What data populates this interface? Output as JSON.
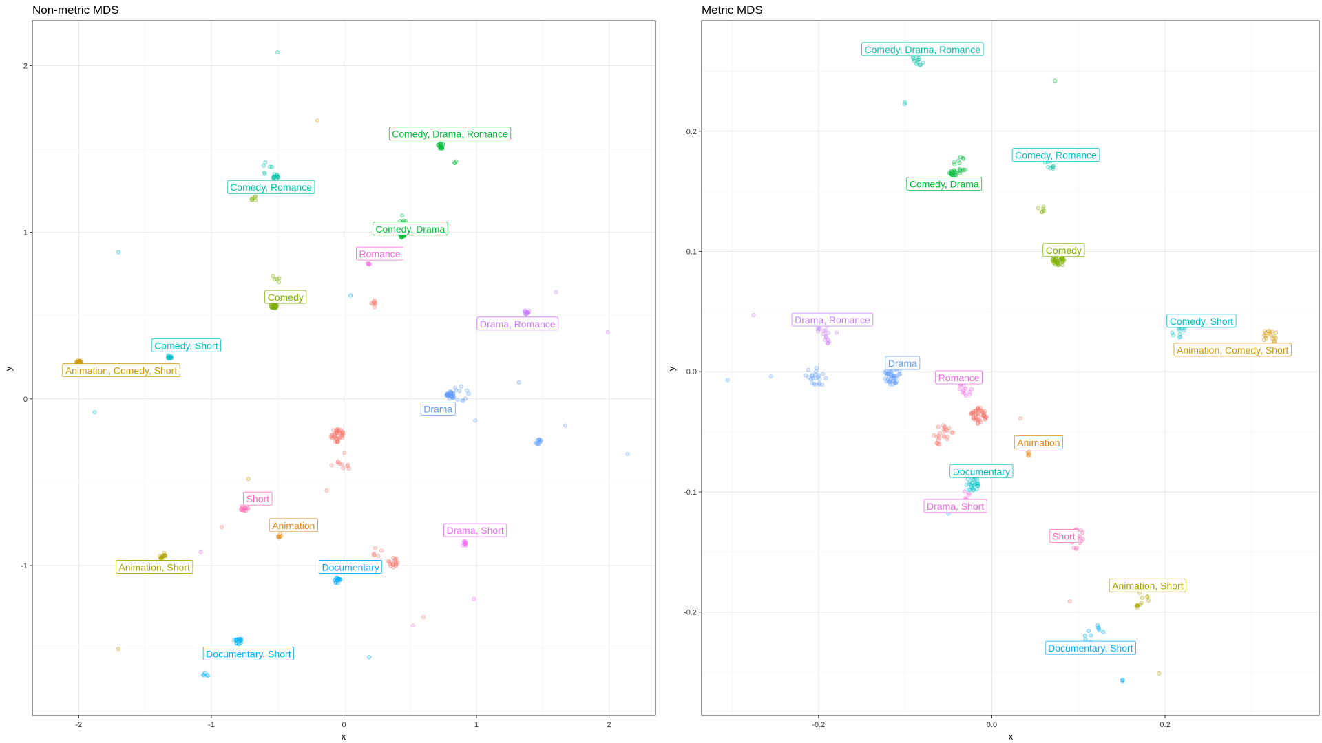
{
  "chart_data": [
    {
      "type": "scatter",
      "title": "Non-metric MDS",
      "xlabel": "x",
      "ylabel": "y",
      "xlim": [
        -2.35,
        2.35
      ],
      "ylim": [
        -1.9,
        2.27
      ],
      "xticks": [
        -2,
        -1,
        0,
        1,
        2
      ],
      "yticks": [
        -1,
        0,
        1,
        2
      ],
      "grid": true,
      "legend": "none",
      "labels": [
        {
          "text": "Comedy, Drama, Romance",
          "x": 0.8,
          "y": 1.59,
          "color": "#00BA38"
        },
        {
          "text": "Comedy, Romance",
          "x": -0.55,
          "y": 1.27,
          "color": "#00BFA4"
        },
        {
          "text": "Comedy, Drama",
          "x": 0.5,
          "y": 1.02,
          "color": "#00BA38"
        },
        {
          "text": "Romance",
          "x": 0.27,
          "y": 0.87,
          "color": "#F564E3"
        },
        {
          "text": "Comedy",
          "x": -0.44,
          "y": 0.61,
          "color": "#7CAE00"
        },
        {
          "text": "Drama, Romance",
          "x": 1.31,
          "y": 0.45,
          "color": "#C77CFF"
        },
        {
          "text": "Comedy, Short",
          "x": -1.19,
          "y": 0.32,
          "color": "#00BFC4"
        },
        {
          "text": "Animation, Comedy, Short",
          "x": -1.68,
          "y": 0.17,
          "color": "#CD9600"
        },
        {
          "text": "Drama",
          "x": 0.71,
          "y": -0.06,
          "color": "#619CFF"
        },
        {
          "text": "Short",
          "x": -0.65,
          "y": -0.6,
          "color": "#FF64B0"
        },
        {
          "text": "Animation",
          "x": -0.38,
          "y": -0.76,
          "color": "#E68613"
        },
        {
          "text": "Drama, Short",
          "x": 0.99,
          "y": -0.79,
          "color": "#E76BF3"
        },
        {
          "text": "Animation, Short",
          "x": -1.43,
          "y": -1.01,
          "color": "#ABA300"
        },
        {
          "text": "Documentary",
          "x": 0.05,
          "y": -1.01,
          "color": "#00A9FF"
        },
        {
          "text": "Documentary, Short",
          "x": -0.72,
          "y": -1.53,
          "color": "#00B0F6"
        }
      ],
      "clusters": [
        {
          "x": 0.73,
          "y": 1.52,
          "n": 18,
          "spread": 0.025,
          "color": "#00BA38"
        },
        {
          "x": 0.84,
          "y": 1.42,
          "n": 3,
          "spread": 0.01,
          "color": "#00BA38"
        },
        {
          "x": -0.52,
          "y": 1.33,
          "n": 14,
          "spread": 0.025,
          "color": "#00BFA4"
        },
        {
          "x": -0.58,
          "y": 1.38,
          "n": 6,
          "spread": 0.05,
          "color": "#00BFA4"
        },
        {
          "x": -0.68,
          "y": 1.21,
          "n": 6,
          "spread": 0.03,
          "color": "#7CAE00"
        },
        {
          "x": 0.44,
          "y": 0.98,
          "n": 22,
          "spread": 0.02,
          "color": "#00BA38"
        },
        {
          "x": 0.44,
          "y": 1.08,
          "n": 6,
          "spread": 0.05,
          "color": "#00BA38"
        },
        {
          "x": 0.19,
          "y": 0.82,
          "n": 5,
          "spread": 0.02,
          "color": "#F564E3"
        },
        {
          "x": -0.53,
          "y": 0.56,
          "n": 26,
          "spread": 0.025,
          "color": "#7CAE00"
        },
        {
          "x": -0.52,
          "y": 0.71,
          "n": 5,
          "spread": 0.04,
          "color": "#7CAE00"
        },
        {
          "x": 0.22,
          "y": 0.57,
          "n": 8,
          "spread": 0.03,
          "color": "#F8766D"
        },
        {
          "x": 1.38,
          "y": 0.52,
          "n": 16,
          "spread": 0.02,
          "color": "#C77CFF"
        },
        {
          "x": -1.32,
          "y": 0.25,
          "n": 14,
          "spread": 0.02,
          "color": "#00BFC4"
        },
        {
          "x": -1.4,
          "y": 0.31,
          "n": 4,
          "spread": 0.04,
          "color": "#00BFC4"
        },
        {
          "x": -2.0,
          "y": 0.22,
          "n": 18,
          "spread": 0.02,
          "color": "#CD9600"
        },
        {
          "x": 0.8,
          "y": 0.02,
          "n": 30,
          "spread": 0.03,
          "color": "#619CFF"
        },
        {
          "x": 0.88,
          "y": 0.03,
          "n": 10,
          "spread": 0.06,
          "color": "#619CFF"
        },
        {
          "x": 1.47,
          "y": -0.26,
          "n": 12,
          "spread": 0.025,
          "color": "#619CFF"
        },
        {
          "x": -0.05,
          "y": -0.22,
          "n": 40,
          "spread": 0.05,
          "color": "#F8766D"
        },
        {
          "x": -0.02,
          "y": -0.38,
          "n": 10,
          "spread": 0.08,
          "color": "#F8766D"
        },
        {
          "x": 0.37,
          "y": -0.98,
          "n": 18,
          "spread": 0.04,
          "color": "#F8766D"
        },
        {
          "x": 0.26,
          "y": -0.92,
          "n": 6,
          "spread": 0.04,
          "color": "#F8766D"
        },
        {
          "x": -0.75,
          "y": -0.66,
          "n": 14,
          "spread": 0.03,
          "color": "#FF64B0"
        },
        {
          "x": -0.48,
          "y": -0.82,
          "n": 7,
          "spread": 0.02,
          "color": "#E68613"
        },
        {
          "x": 0.91,
          "y": -0.87,
          "n": 10,
          "spread": 0.02,
          "color": "#E76BF3"
        },
        {
          "x": -1.37,
          "y": -0.94,
          "n": 14,
          "spread": 0.025,
          "color": "#ABA300"
        },
        {
          "x": -0.05,
          "y": -1.09,
          "n": 18,
          "spread": 0.025,
          "color": "#00A9FF"
        },
        {
          "x": -0.8,
          "y": -1.45,
          "n": 18,
          "spread": 0.03,
          "color": "#00B0F6"
        },
        {
          "x": -1.04,
          "y": -1.66,
          "n": 5,
          "spread": 0.03,
          "color": "#00B0F6"
        }
      ],
      "points": [
        {
          "x": -0.5,
          "y": 2.08,
          "color": "#00BFA4"
        },
        {
          "x": -0.2,
          "y": 1.67,
          "color": "#CD9600"
        },
        {
          "x": -1.7,
          "y": 0.88,
          "color": "#00BFC4"
        },
        {
          "x": 0.05,
          "y": 0.62,
          "color": "#00A9FF"
        },
        {
          "x": 1.6,
          "y": 0.64,
          "color": "#C77CFF"
        },
        {
          "x": 1.99,
          "y": 0.4,
          "color": "#C77CFF"
        },
        {
          "x": 1.32,
          "y": 0.1,
          "color": "#619CFF"
        },
        {
          "x": 2.14,
          "y": -0.33,
          "color": "#619CFF"
        },
        {
          "x": 0.99,
          "y": -0.13,
          "color": "#619CFF"
        },
        {
          "x": -1.88,
          "y": -0.08,
          "color": "#00BFC4"
        },
        {
          "x": 1.67,
          "y": -0.16,
          "color": "#619CFF"
        },
        {
          "x": -0.72,
          "y": -0.48,
          "color": "#CD9600"
        },
        {
          "x": -0.92,
          "y": -0.77,
          "color": "#F8766D"
        },
        {
          "x": 0.98,
          "y": -1.2,
          "color": "#F564E3"
        },
        {
          "x": -1.7,
          "y": -1.5,
          "color": "#ABA300"
        },
        {
          "x": 0.19,
          "y": -1.55,
          "color": "#00A9FF"
        },
        {
          "x": 0.6,
          "y": -1.31,
          "color": "#F8766D"
        },
        {
          "x": 0.52,
          "y": -1.36,
          "color": "#F564E3"
        },
        {
          "x": -1.08,
          "y": -0.92,
          "color": "#F564E3"
        },
        {
          "x": -0.13,
          "y": -0.55,
          "color": "#F8766D"
        }
      ]
    },
    {
      "type": "scatter",
      "title": "Metric MDS",
      "xlabel": "x",
      "ylabel": "y",
      "xlim": [
        -0.335,
        0.378
      ],
      "ylim": [
        -0.286,
        0.292
      ],
      "xticks": [
        -0.2,
        0.0,
        0.2
      ],
      "xtick_labels": [
        "-0.2",
        "0.0",
        "0.2"
      ],
      "yticks": [
        -0.2,
        -0.1,
        0.0,
        0.1,
        0.2
      ],
      "ytick_labels": [
        "-0.2",
        "-0.1",
        "0.0",
        "0.1",
        "0.2"
      ],
      "grid": true,
      "legend": "none",
      "labels": [
        {
          "text": "Comedy, Drama, Romance",
          "x": -0.08,
          "y": 0.268,
          "color": "#00BFA4"
        },
        {
          "text": "Comedy, Romance",
          "x": 0.074,
          "y": 0.18,
          "color": "#00BFC4"
        },
        {
          "text": "Comedy, Drama",
          "x": -0.055,
          "y": 0.156,
          "color": "#00BA38"
        },
        {
          "text": "Comedy",
          "x": 0.083,
          "y": 0.101,
          "color": "#7CAE00"
        },
        {
          "text": "Drama, Romance",
          "x": -0.184,
          "y": 0.043,
          "color": "#C77CFF"
        },
        {
          "text": "Comedy, Short",
          "x": 0.242,
          "y": 0.042,
          "color": "#00BFC4"
        },
        {
          "text": "Animation, Comedy, Short",
          "x": 0.278,
          "y": 0.018,
          "color": "#CD9600"
        },
        {
          "text": "Drama",
          "x": -0.103,
          "y": 0.007,
          "color": "#619CFF"
        },
        {
          "text": "Romance",
          "x": -0.038,
          "y": -0.005,
          "color": "#F564E3"
        },
        {
          "text": "Animation",
          "x": 0.054,
          "y": -0.059,
          "color": "#E68613"
        },
        {
          "text": "Documentary",
          "x": -0.012,
          "y": -0.083,
          "color": "#00BFC4"
        },
        {
          "text": "Drama, Short",
          "x": -0.042,
          "y": -0.112,
          "color": "#F564E3"
        },
        {
          "text": "Short",
          "x": 0.083,
          "y": -0.137,
          "color": "#FF64B0"
        },
        {
          "text": "Animation, Short",
          "x": 0.18,
          "y": -0.178,
          "color": "#ABA300"
        },
        {
          "text": "Documentary, Short",
          "x": 0.114,
          "y": -0.23,
          "color": "#00A9FF"
        }
      ],
      "clusters": [
        {
          "x": -0.085,
          "y": 0.26,
          "n": 14,
          "spread": 0.007,
          "color": "#00BFA4"
        },
        {
          "x": -0.098,
          "y": 0.222,
          "n": 2,
          "spread": 0.004,
          "color": "#00BFA4"
        },
        {
          "x": -0.045,
          "y": 0.165,
          "n": 18,
          "spread": 0.004,
          "color": "#00BA38"
        },
        {
          "x": -0.035,
          "y": 0.172,
          "n": 14,
          "spread": 0.009,
          "color": "#00BA38"
        },
        {
          "x": 0.067,
          "y": 0.172,
          "n": 10,
          "spread": 0.007,
          "color": "#00BFA4"
        },
        {
          "x": 0.057,
          "y": 0.135,
          "n": 6,
          "spread": 0.004,
          "color": "#7CAE00"
        },
        {
          "x": 0.077,
          "y": 0.093,
          "n": 45,
          "spread": 0.007,
          "color": "#7CAE00"
        },
        {
          "x": -0.19,
          "y": 0.033,
          "n": 18,
          "spread": 0.012,
          "color": "#C77CFF"
        },
        {
          "x": -0.203,
          "y": -0.004,
          "n": 22,
          "spread": 0.012,
          "color": "#619CFF"
        },
        {
          "x": -0.115,
          "y": -0.003,
          "n": 45,
          "spread": 0.01,
          "color": "#619CFF"
        },
        {
          "x": -0.03,
          "y": -0.014,
          "n": 12,
          "spread": 0.008,
          "color": "#F564E3"
        },
        {
          "x": -0.015,
          "y": -0.037,
          "n": 50,
          "spread": 0.009,
          "color": "#F8766D"
        },
        {
          "x": -0.055,
          "y": -0.053,
          "n": 25,
          "spread": 0.012,
          "color": "#F8766D"
        },
        {
          "x": 0.043,
          "y": -0.068,
          "n": 5,
          "spread": 0.003,
          "color": "#E68613"
        },
        {
          "x": -0.022,
          "y": -0.093,
          "n": 26,
          "spread": 0.008,
          "color": "#00BFC4"
        },
        {
          "x": -0.03,
          "y": -0.103,
          "n": 6,
          "spread": 0.005,
          "color": "#F564E3"
        },
        {
          "x": 0.098,
          "y": -0.14,
          "n": 18,
          "spread": 0.012,
          "color": "#FF64B0"
        },
        {
          "x": 0.215,
          "y": 0.035,
          "n": 16,
          "spread": 0.01,
          "color": "#00BFC4"
        },
        {
          "x": 0.32,
          "y": 0.028,
          "n": 20,
          "spread": 0.01,
          "color": "#CD9600"
        },
        {
          "x": 0.172,
          "y": -0.19,
          "n": 12,
          "spread": 0.009,
          "color": "#ABA300"
        },
        {
          "x": 0.118,
          "y": -0.218,
          "n": 12,
          "spread": 0.012,
          "color": "#00A9FF"
        },
        {
          "x": 0.152,
          "y": -0.256,
          "n": 3,
          "spread": 0.003,
          "color": "#00A9FF"
        }
      ],
      "points": [
        {
          "x": 0.073,
          "y": 0.242,
          "color": "#00BA38"
        },
        {
          "x": -0.275,
          "y": 0.047,
          "color": "#C77CFF"
        },
        {
          "x": -0.305,
          "y": -0.007,
          "color": "#619CFF"
        },
        {
          "x": -0.255,
          "y": -0.004,
          "color": "#619CFF"
        },
        {
          "x": 0.09,
          "y": -0.191,
          "color": "#F8766D"
        },
        {
          "x": 0.193,
          "y": -0.251,
          "color": "#ABA300"
        },
        {
          "x": -0.05,
          "y": -0.118,
          "color": "#00A9FF"
        },
        {
          "x": 0.033,
          "y": -0.039,
          "color": "#F8766D"
        }
      ]
    }
  ]
}
